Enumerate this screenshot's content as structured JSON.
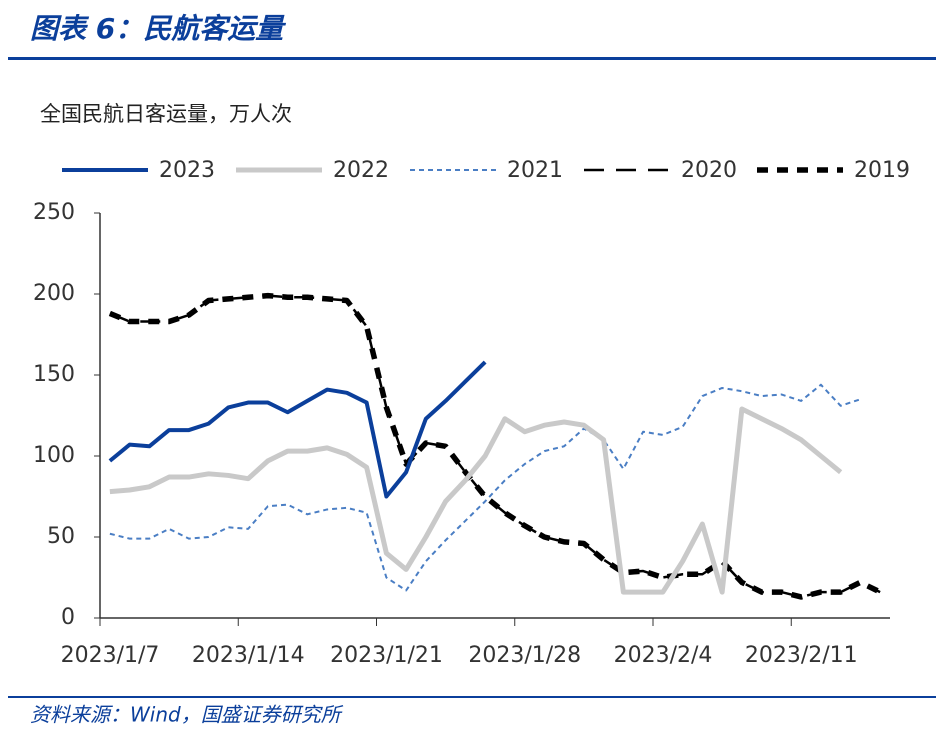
{
  "chart_data": {
    "type": "line",
    "title": "图表 6：民航客运量",
    "subtitle": "全国民航日客运量，万人次",
    "source": "资料来源：Wind，国盛证券研究所",
    "categories": [
      "2023/1/7",
      null,
      null,
      null,
      null,
      null,
      null,
      "2023/1/14",
      null,
      null,
      null,
      null,
      null,
      null,
      "2023/1/21",
      null,
      null,
      null,
      null,
      null,
      null,
      "2023/1/28",
      null,
      null,
      null,
      null,
      null,
      null,
      "2023/2/4",
      null,
      null,
      null,
      null,
      null,
      null,
      "2023/2/11",
      null,
      null,
      null,
      null
    ],
    "ylim": [
      0,
      250
    ],
    "yticks": [
      0,
      50,
      100,
      150,
      200,
      250
    ],
    "series": [
      {
        "name": "2023",
        "color": "#0b3f9b",
        "values": [
          97,
          107,
          106,
          116,
          116,
          120,
          130,
          133,
          133,
          127,
          134,
          141,
          139,
          133,
          75,
          90,
          123,
          134,
          146,
          158,
          null,
          null,
          null,
          null,
          null,
          null,
          null,
          null,
          null,
          null,
          null,
          null,
          null,
          null,
          null,
          null,
          null,
          null,
          null,
          null
        ]
      },
      {
        "name": "2022",
        "color": "#c9c9c9",
        "values": [
          78,
          79,
          81,
          87,
          87,
          89,
          88,
          86,
          97,
          103,
          103,
          105,
          101,
          93,
          40,
          30,
          50,
          72,
          85,
          100,
          123,
          115,
          119,
          121,
          119,
          110,
          16,
          16,
          16,
          35,
          58,
          16,
          129,
          123,
          117,
          110,
          100,
          90,
          null,
          null
        ]
      },
      {
        "name": "2021",
        "color": "#4a7ec4",
        "values": [
          52,
          49,
          49,
          55,
          49,
          50,
          56,
          55,
          69,
          70,
          64,
          67,
          68,
          65,
          25,
          17,
          35,
          48,
          60,
          72,
          85,
          95,
          103,
          106,
          117,
          110,
          92,
          115,
          113,
          118,
          137,
          142,
          140,
          137,
          138,
          134,
          144,
          131,
          135,
          null
        ]
      },
      {
        "name": "2020",
        "color": "#000000",
        "values": [
          188,
          183,
          183,
          183,
          187,
          196,
          197,
          198,
          199,
          198,
          198,
          197,
          196,
          180,
          130,
          95,
          108,
          106,
          90,
          75,
          65,
          57,
          50,
          47,
          46,
          36,
          28,
          29,
          25,
          27,
          27,
          35,
          22,
          16,
          16,
          13,
          16,
          16,
          22,
          16
        ]
      },
      {
        "name": "2019",
        "color": "#000000",
        "values": [
          188,
          183,
          183,
          183,
          187,
          196,
          197,
          198,
          199,
          198,
          198,
          197,
          196,
          180,
          130,
          95,
          108,
          106,
          90,
          75,
          65,
          57,
          50,
          47,
          46,
          36,
          28,
          29,
          25,
          27,
          27,
          35,
          22,
          16,
          16,
          13,
          16,
          16,
          22,
          16
        ]
      }
    ]
  }
}
